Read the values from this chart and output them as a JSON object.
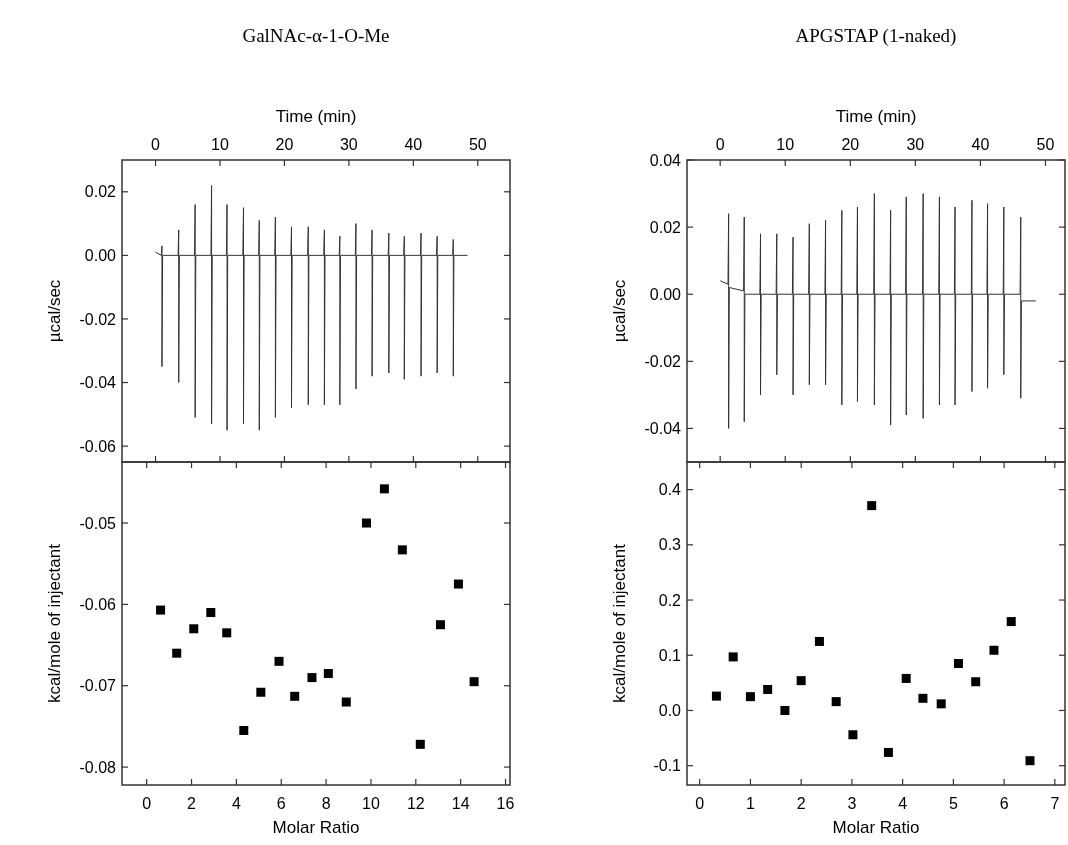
{
  "chart_data": [
    {
      "type": "line",
      "title": "GalNAc-α-1-O-Me",
      "xlabel": "Time (min)",
      "ylabel": "µcal/sec",
      "xlim": [
        -5.2,
        55
      ],
      "xticks": [
        0,
        10,
        20,
        30,
        40,
        50
      ],
      "ylim": [
        -0.065,
        0.03
      ],
      "yticks": [
        {
          "value": 0.02,
          "label": "0.02"
        },
        {
          "value": 0,
          "label": "0.00"
        },
        {
          "value": -0.02,
          "label": "-0.02"
        },
        {
          "value": -0.04,
          "label": "-0.04"
        },
        {
          "value": -0.06,
          "label": "-0.06"
        }
      ],
      "tick_labels": "xy",
      "series": [
        {
          "color": "#333333",
          "x": [
            0,
            0.9,
            1,
            1,
            1.1,
            3.5,
            3.6,
            3.6,
            3.7,
            6.05,
            6.15,
            6.15,
            6.25,
            8.6,
            8.7,
            8.7,
            8.8,
            11,
            11.1,
            11.1,
            11.2,
            13.55,
            13.65,
            13.65,
            13.75,
            16,
            16.1,
            16.1,
            16.2,
            18.5,
            18.6,
            18.6,
            18.7,
            21,
            21.1,
            21.1,
            21.2,
            23.6,
            23.7,
            23.7,
            23.8,
            26.1,
            26.2,
            26.2,
            26.3,
            28.5,
            28.6,
            28.6,
            28.7,
            31,
            31.1,
            31.1,
            31.2,
            33.5,
            33.6,
            33.6,
            33.7,
            36.1,
            36.2,
            36.2,
            36.3,
            38.5,
            38.6,
            38.6,
            38.7,
            41.1,
            41.2,
            41.2,
            41.3,
            43.6,
            43.7,
            43.7,
            43.8,
            46.1,
            46.2,
            46.2,
            46.3,
            48.4
          ],
          "values": [
            0.001,
            0,
            0.003,
            -0.035,
            0,
            0,
            0.008,
            -0.04,
            0,
            0,
            0.016,
            -0.051,
            0,
            0,
            0.022,
            -0.053,
            0,
            0,
            0.016,
            -0.055,
            0,
            0,
            0.015,
            -0.053,
            0,
            0,
            0.011,
            -0.055,
            0,
            0,
            0.012,
            -0.051,
            0,
            0,
            0.009,
            -0.048,
            0,
            0,
            0.009,
            -0.047,
            0,
            0,
            0.008,
            -0.047,
            0,
            0,
            0.006,
            -0.047,
            0,
            0,
            0.01,
            -0.042,
            0,
            0,
            0.008,
            -0.038,
            0,
            0,
            0.007,
            -0.037,
            0,
            0,
            0.006,
            -0.039,
            0,
            0,
            0.007,
            -0.038,
            0,
            0,
            0.006,
            -0.037,
            0,
            0,
            0.005,
            -0.038,
            0,
            0
          ]
        }
      ]
    },
    {
      "type": "scatter",
      "xlabel": "Molar Ratio",
      "ylabel": "kcal/mole of injectant",
      "marker": "square",
      "xlim": [
        -1.1,
        16.2
      ],
      "xticks": [
        0,
        2,
        4,
        6,
        8,
        10,
        12,
        14,
        16
      ],
      "ylim": [
        -0.0822,
        -0.0425
      ],
      "yticks": [
        -0.05,
        -0.06,
        -0.07,
        -0.08
      ],
      "series": [
        {
          "color": "#000000",
          "x": [
            0.62,
            1.34,
            2.1,
            2.86,
            3.57,
            4.33,
            5.09,
            5.9,
            6.6,
            7.37,
            8.1,
            8.9,
            9.8,
            10.6,
            11.4,
            12.2,
            13.1,
            13.9,
            14.6
          ],
          "values": [
            -0.0607,
            -0.066,
            -0.063,
            -0.061,
            -0.0635,
            -0.0755,
            -0.0708,
            -0.067,
            -0.0713,
            -0.069,
            -0.0685,
            -0.072,
            -0.05,
            -0.0458,
            -0.0533,
            -0.0772,
            -0.0625,
            -0.0575,
            -0.0695
          ]
        }
      ]
    },
    {
      "type": "line",
      "title": "APGSTAP (1-naked)",
      "xlabel": "Time (min)",
      "ylabel": "µcal/sec",
      "xlim": [
        -5.1,
        53
      ],
      "xticks": [
        0,
        10,
        20,
        30,
        40,
        50
      ],
      "ylim": [
        -0.05,
        0.04
      ],
      "yticks": [
        {
          "value": 0.04,
          "label": "0.04"
        },
        {
          "value": 0.02,
          "label": "0.02"
        },
        {
          "value": 0,
          "label": "0.00"
        },
        {
          "value": -0.02,
          "label": "-0.02"
        },
        {
          "value": -0.04,
          "label": "-0.04"
        }
      ],
      "tick_labels": "xy",
      "series": [
        {
          "color": "#333333",
          "x": [
            0,
            1.2,
            1.3,
            1.3,
            1.4,
            3.6,
            3.7,
            3.7,
            3.8,
            6.1,
            6.2,
            6.2,
            6.3,
            8.6,
            8.7,
            8.7,
            8.8,
            11.1,
            11.2,
            11.2,
            11.3,
            13.6,
            13.7,
            13.7,
            13.8,
            16.1,
            16.2,
            16.2,
            16.3,
            18.6,
            18.7,
            18.7,
            18.8,
            21,
            21.1,
            21.1,
            21.2,
            23.6,
            23.7,
            23.7,
            23.8,
            26.1,
            26.2,
            26.2,
            26.3,
            28.5,
            28.6,
            28.6,
            28.7,
            31.1,
            31.2,
            31.2,
            31.3,
            33.6,
            33.7,
            33.7,
            33.8,
            36,
            36.1,
            36.1,
            36.2,
            38.6,
            38.7,
            38.7,
            38.8,
            41,
            41.1,
            41.1,
            41.2,
            43.5,
            43.6,
            43.6,
            43.7,
            46.1,
            46.2,
            46.2,
            46.3,
            48.5
          ],
          "values": [
            0.004,
            0.003,
            0.024,
            -0.04,
            0.002,
            0.001,
            0.023,
            -0.038,
            0,
            0,
            0.018,
            -0.03,
            0,
            0,
            0.018,
            -0.024,
            0,
            0,
            0.017,
            -0.03,
            0,
            0,
            0.021,
            -0.027,
            0,
            0,
            0.022,
            -0.027,
            0,
            0,
            0.025,
            -0.033,
            0,
            0,
            0.026,
            -0.032,
            0,
            0,
            0.03,
            -0.033,
            0,
            0,
            0.025,
            -0.039,
            0,
            0,
            0.029,
            -0.036,
            0,
            0,
            0.03,
            -0.037,
            0,
            0,
            0.029,
            -0.033,
            0,
            0,
            0.026,
            -0.033,
            0,
            0,
            0.028,
            -0.029,
            0,
            0,
            0.027,
            -0.028,
            0,
            0,
            0.026,
            -0.024,
            0,
            0,
            0.023,
            -0.031,
            -0.002,
            -0.002
          ]
        }
      ]
    },
    {
      "type": "scatter",
      "xlabel": "Molar Ratio",
      "ylabel": "kcal/mole of injectant",
      "marker": "square",
      "xlim": [
        -0.25,
        7.2
      ],
      "xticks": [
        0,
        1,
        2,
        3,
        4,
        5,
        6,
        7
      ],
      "ylim": [
        -0.135,
        0.45
      ],
      "yticks": [
        0.4,
        0.3,
        0.2,
        0.1,
        {
          "value": 0,
          "label": "0.0"
        },
        -0.1
      ],
      "series": [
        {
          "color": "#000000",
          "x": [
            0.33,
            0.66,
            1.0,
            1.34,
            1.68,
            2.0,
            2.36,
            2.69,
            3.02,
            3.39,
            3.72,
            4.07,
            4.4,
            4.76,
            5.1,
            5.44,
            5.8,
            6.14,
            6.51
          ],
          "values": [
            0.026,
            0.097,
            0.025,
            0.038,
            0.0,
            0.054,
            0.125,
            0.016,
            -0.044,
            0.371,
            -0.076,
            0.058,
            0.022,
            0.012,
            0.085,
            0.052,
            0.109,
            0.161,
            -0.091
          ]
        }
      ]
    }
  ]
}
